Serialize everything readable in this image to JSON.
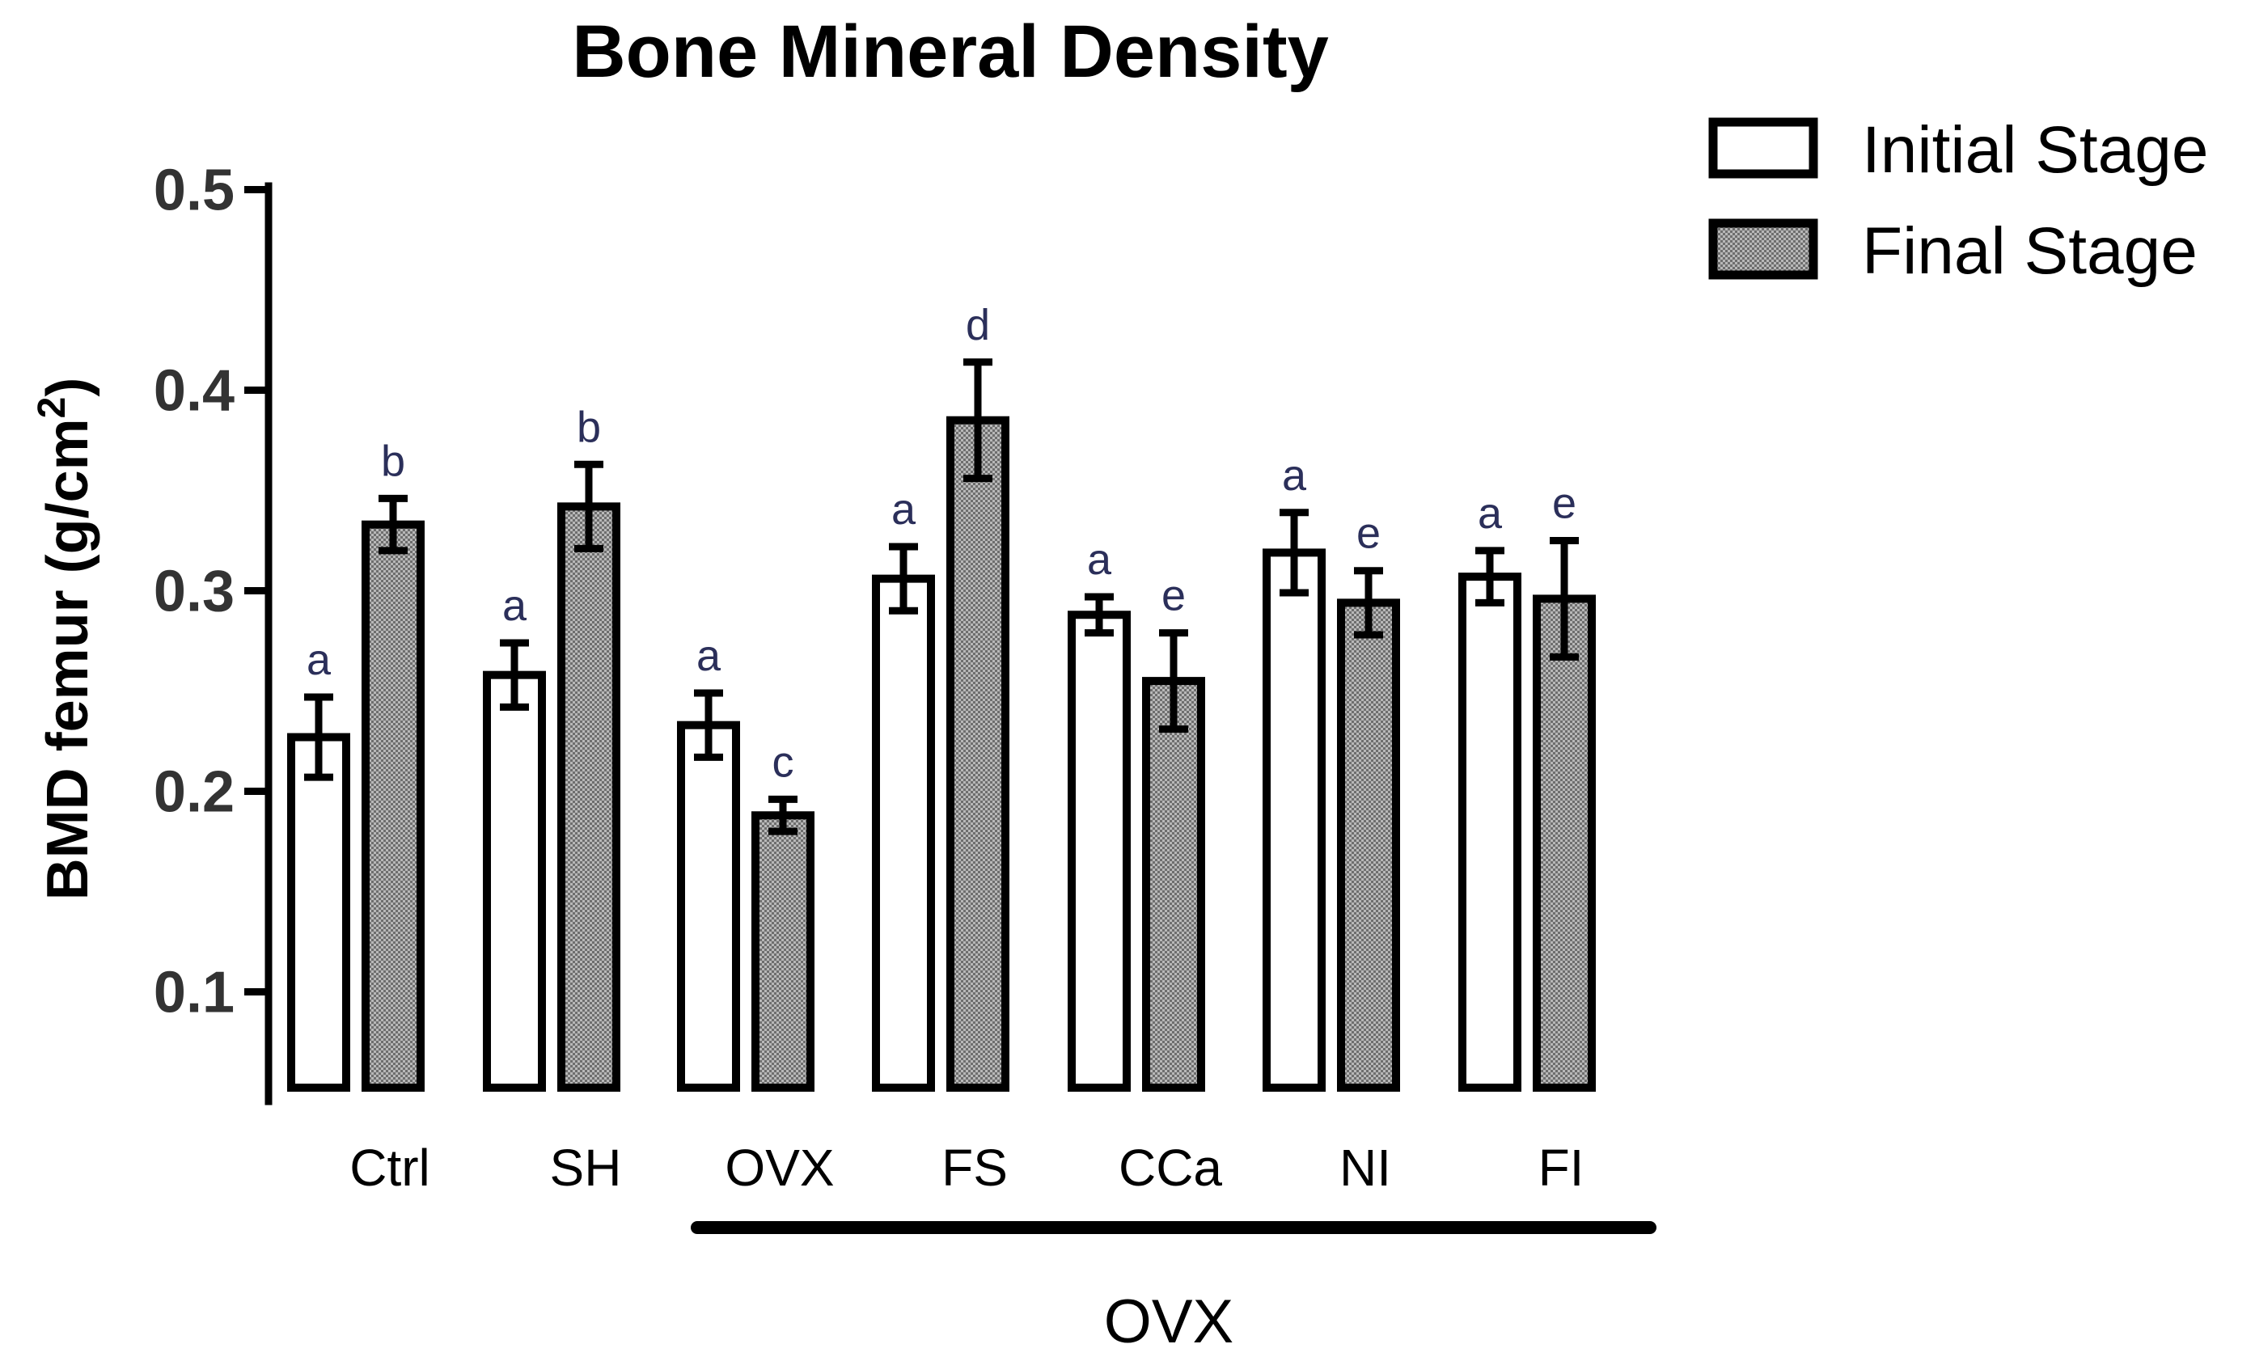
{
  "chart_data": {
    "type": "bar",
    "title": "Bone Mineral Density",
    "xlabel": "",
    "ylabel": {
      "main": "BMD femur  (g/cm",
      "superscript": "2",
      "close": ")"
    },
    "ylim": [
      0.05,
      0.5
    ],
    "yticks": [
      "0.1",
      "0.2",
      "0.3",
      "0.4",
      "0.5"
    ],
    "categories": [
      "Ctrl",
      "SH",
      "OVX",
      "FS",
      "CCa",
      "NI",
      "FI"
    ],
    "series": [
      {
        "name": "Initial Stage",
        "pattern": "white",
        "values": [
          0.227,
          0.258,
          0.233,
          0.306,
          0.288,
          0.319,
          0.307
        ],
        "errors": [
          0.02,
          0.016,
          0.016,
          0.016,
          0.009,
          0.02,
          0.013
        ],
        "annotations": [
          "a",
          "a",
          "a",
          "a",
          "a",
          "a",
          "a"
        ]
      },
      {
        "name": "Final Stage",
        "pattern": "stipple",
        "values": [
          0.333,
          0.342,
          0.188,
          0.385,
          0.255,
          0.294,
          0.296
        ],
        "errors": [
          0.013,
          0.021,
          0.008,
          0.029,
          0.024,
          0.016,
          0.029
        ],
        "annotations": [
          "b",
          "b",
          "c",
          "d",
          "e",
          "e",
          "e"
        ]
      }
    ],
    "group_label": "OVX",
    "group_categories": [
      "OVX",
      "FS",
      "CCa",
      "NI",
      "FI"
    ],
    "legend_position": "top-right",
    "grid": false
  },
  "colors": {
    "stroke": "#000000",
    "initial_fill": "#ffffff",
    "final_fill": "#9a9a9a",
    "annotation": "#2b2f5a"
  }
}
